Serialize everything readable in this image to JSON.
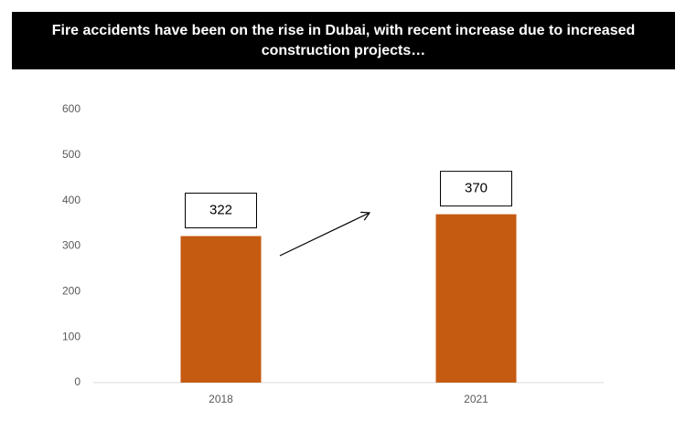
{
  "chart_data": {
    "type": "bar",
    "title": "Fire accidents have been on the rise in Dubai, with recent increase due to increased construction projects…",
    "categories": [
      "2018",
      "2021"
    ],
    "values": [
      322,
      370
    ],
    "color": "#c55a11",
    "ylim": [
      0,
      600
    ],
    "yticks": [
      0,
      100,
      200,
      300,
      400,
      500,
      600
    ],
    "grid": false
  }
}
